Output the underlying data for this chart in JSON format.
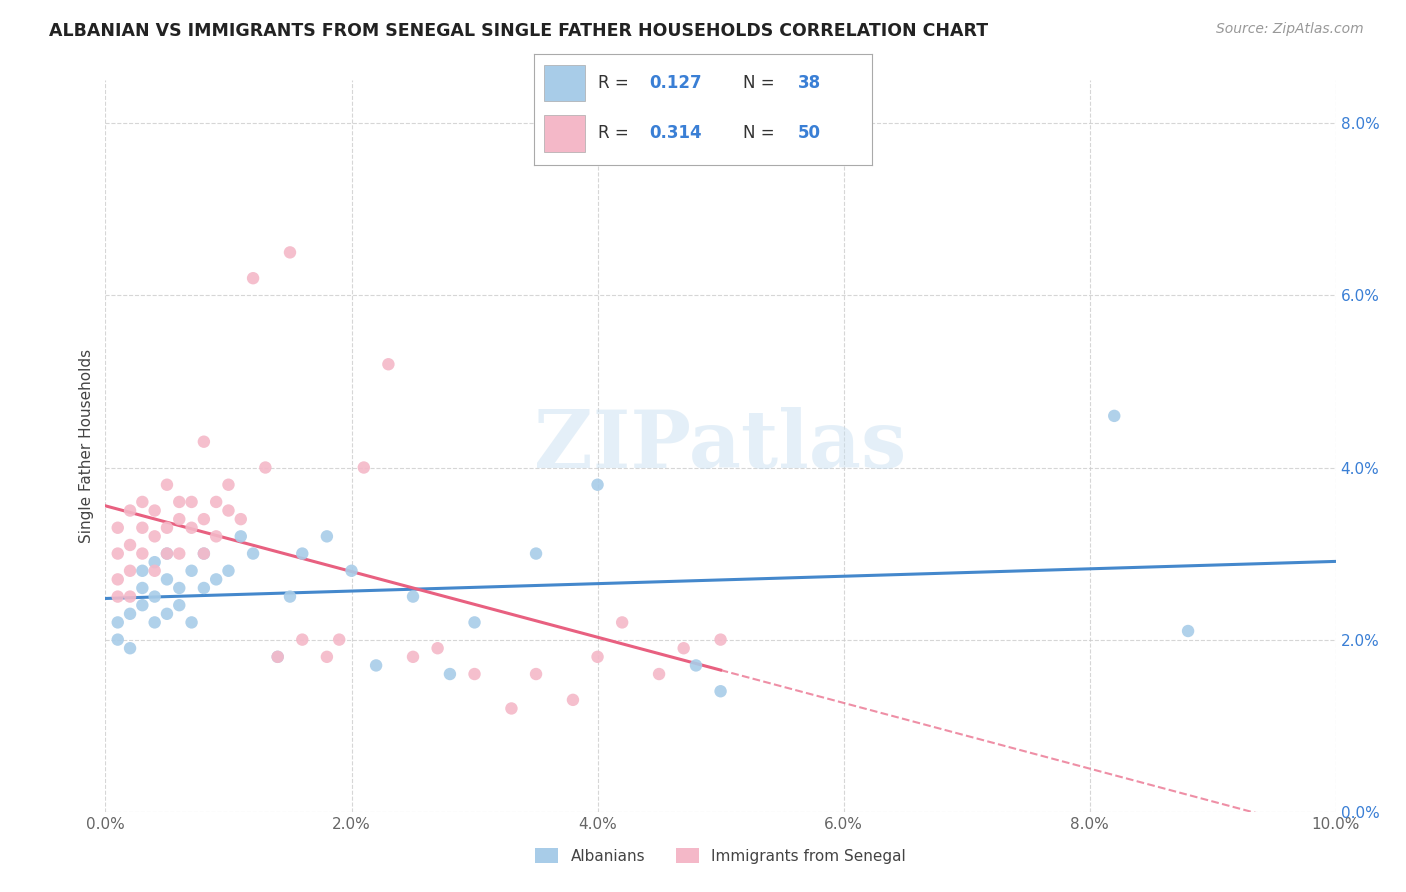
{
  "title": "ALBANIAN VS IMMIGRANTS FROM SENEGAL SINGLE FATHER HOUSEHOLDS CORRELATION CHART",
  "source": "Source: ZipAtlas.com",
  "ylabel": "Single Father Households",
  "xlim": [
    0.0,
    0.1
  ],
  "ylim": [
    0.0,
    0.085
  ],
  "x_ticks": [
    0.0,
    0.02,
    0.04,
    0.06,
    0.08,
    0.1
  ],
  "y_ticks": [
    0.0,
    0.02,
    0.04,
    0.06,
    0.08
  ],
  "legend_r1": "R = 0.127",
  "legend_n1": "N = 38",
  "legend_r2": "R = 0.314",
  "legend_n2": "N = 50",
  "blue_color": "#a8cce8",
  "pink_color": "#f4b8c8",
  "blue_line_color": "#4488cc",
  "pink_line_color": "#e86080",
  "legend_text_color": "#3a7fd5",
  "n_text_color": "#3a7fd5",
  "watermark": "ZIPatlas",
  "albanians_x": [
    0.001,
    0.001,
    0.002,
    0.002,
    0.003,
    0.003,
    0.003,
    0.004,
    0.004,
    0.004,
    0.005,
    0.005,
    0.005,
    0.006,
    0.006,
    0.007,
    0.007,
    0.008,
    0.008,
    0.009,
    0.01,
    0.011,
    0.012,
    0.014,
    0.015,
    0.016,
    0.018,
    0.02,
    0.022,
    0.025,
    0.028,
    0.03,
    0.035,
    0.04,
    0.048,
    0.05,
    0.082,
    0.088
  ],
  "albanians_y": [
    0.02,
    0.022,
    0.023,
    0.019,
    0.026,
    0.024,
    0.028,
    0.025,
    0.022,
    0.029,
    0.027,
    0.023,
    0.03,
    0.026,
    0.024,
    0.028,
    0.022,
    0.03,
    0.026,
    0.027,
    0.028,
    0.032,
    0.03,
    0.018,
    0.025,
    0.03,
    0.032,
    0.028,
    0.017,
    0.025,
    0.016,
    0.022,
    0.03,
    0.038,
    0.017,
    0.014,
    0.046,
    0.021
  ],
  "senegal_x": [
    0.001,
    0.001,
    0.001,
    0.001,
    0.002,
    0.002,
    0.002,
    0.002,
    0.003,
    0.003,
    0.003,
    0.004,
    0.004,
    0.004,
    0.005,
    0.005,
    0.005,
    0.006,
    0.006,
    0.006,
    0.007,
    0.007,
    0.008,
    0.008,
    0.008,
    0.009,
    0.009,
    0.01,
    0.01,
    0.011,
    0.012,
    0.013,
    0.014,
    0.015,
    0.016,
    0.018,
    0.019,
    0.021,
    0.023,
    0.025,
    0.027,
    0.03,
    0.033,
    0.035,
    0.038,
    0.04,
    0.042,
    0.045,
    0.047,
    0.05
  ],
  "senegal_y": [
    0.025,
    0.027,
    0.03,
    0.033,
    0.028,
    0.031,
    0.025,
    0.035,
    0.03,
    0.033,
    0.036,
    0.032,
    0.028,
    0.035,
    0.033,
    0.03,
    0.038,
    0.034,
    0.036,
    0.03,
    0.033,
    0.036,
    0.034,
    0.043,
    0.03,
    0.032,
    0.036,
    0.035,
    0.038,
    0.034,
    0.062,
    0.04,
    0.018,
    0.065,
    0.02,
    0.018,
    0.02,
    0.04,
    0.052,
    0.018,
    0.019,
    0.016,
    0.012,
    0.016,
    0.013,
    0.018,
    0.022,
    0.016,
    0.019,
    0.02
  ]
}
